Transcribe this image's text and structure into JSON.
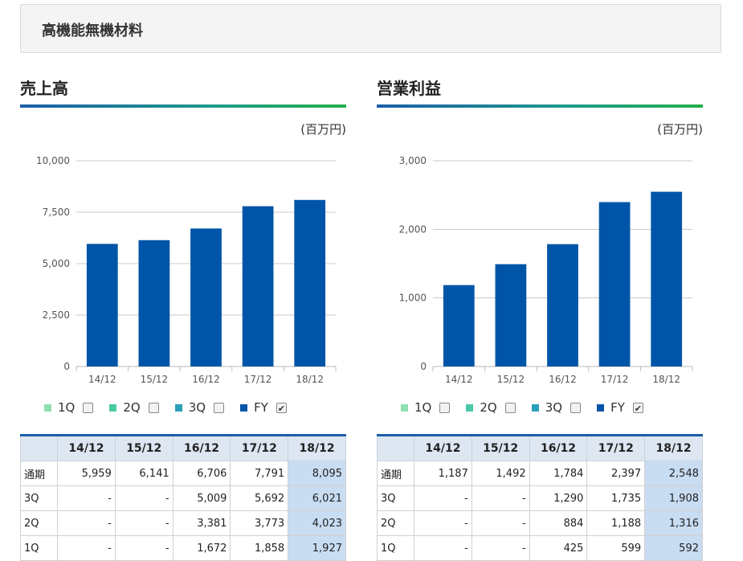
{
  "header": {
    "title": "高機能無機材料"
  },
  "colors": {
    "bar": "#0055a8",
    "q1": "#8ee0b0",
    "q2": "#49c9a5",
    "q3": "#2aa0b8",
    "fy": "#0055a8",
    "grid": "#c8c8c8"
  },
  "legend": {
    "items": [
      {
        "label": "1Q",
        "checked": false
      },
      {
        "label": "2Q",
        "checked": false
      },
      {
        "label": "3Q",
        "checked": false
      },
      {
        "label": "FY",
        "checked": true
      }
    ]
  },
  "panels": [
    {
      "title": "売上高",
      "unit": "(百万円)"
    },
    {
      "title": "営業利益",
      "unit": "(百万円)"
    }
  ],
  "chart_data": [
    {
      "type": "bar",
      "title": "売上高",
      "categories": [
        "14/12",
        "15/12",
        "16/12",
        "17/12",
        "18/12"
      ],
      "values": [
        5959,
        6141,
        6706,
        7791,
        8095
      ],
      "ylim": [
        0,
        10000
      ],
      "yticks": [
        "0",
        "2,500",
        "5,000",
        "7,500",
        "10,000"
      ],
      "ytick_values": [
        0,
        2500,
        5000,
        7500,
        10000
      ],
      "grid": true
    },
    {
      "type": "bar",
      "title": "営業利益",
      "categories": [
        "14/12",
        "15/12",
        "16/12",
        "17/12",
        "18/12"
      ],
      "values": [
        1187,
        1492,
        1784,
        2397,
        2548
      ],
      "ylim": [
        0,
        3000
      ],
      "yticks": [
        "0",
        "1,000",
        "2,000",
        "3,000"
      ],
      "ytick_values": [
        0,
        1000,
        2000,
        3000
      ],
      "grid": true
    }
  ],
  "tables": [
    {
      "columns": [
        "",
        "14/12",
        "15/12",
        "16/12",
        "17/12",
        "18/12"
      ],
      "rows": [
        [
          "通期",
          "5,959",
          "6,141",
          "6,706",
          "7,791",
          "8,095"
        ],
        [
          "3Q",
          "-",
          "-",
          "5,009",
          "5,692",
          "6,021"
        ],
        [
          "2Q",
          "-",
          "-",
          "3,381",
          "3,773",
          "4,023"
        ],
        [
          "1Q",
          "-",
          "-",
          "1,672",
          "1,858",
          "1,927"
        ]
      ]
    },
    {
      "columns": [
        "",
        "14/12",
        "15/12",
        "16/12",
        "17/12",
        "18/12"
      ],
      "rows": [
        [
          "通期",
          "1,187",
          "1,492",
          "1,784",
          "2,397",
          "2,548"
        ],
        [
          "3Q",
          "-",
          "-",
          "1,290",
          "1,735",
          "1,908"
        ],
        [
          "2Q",
          "-",
          "-",
          "884",
          "1,188",
          "1,316"
        ],
        [
          "1Q",
          "-",
          "-",
          "425",
          "599",
          "592"
        ]
      ]
    }
  ]
}
